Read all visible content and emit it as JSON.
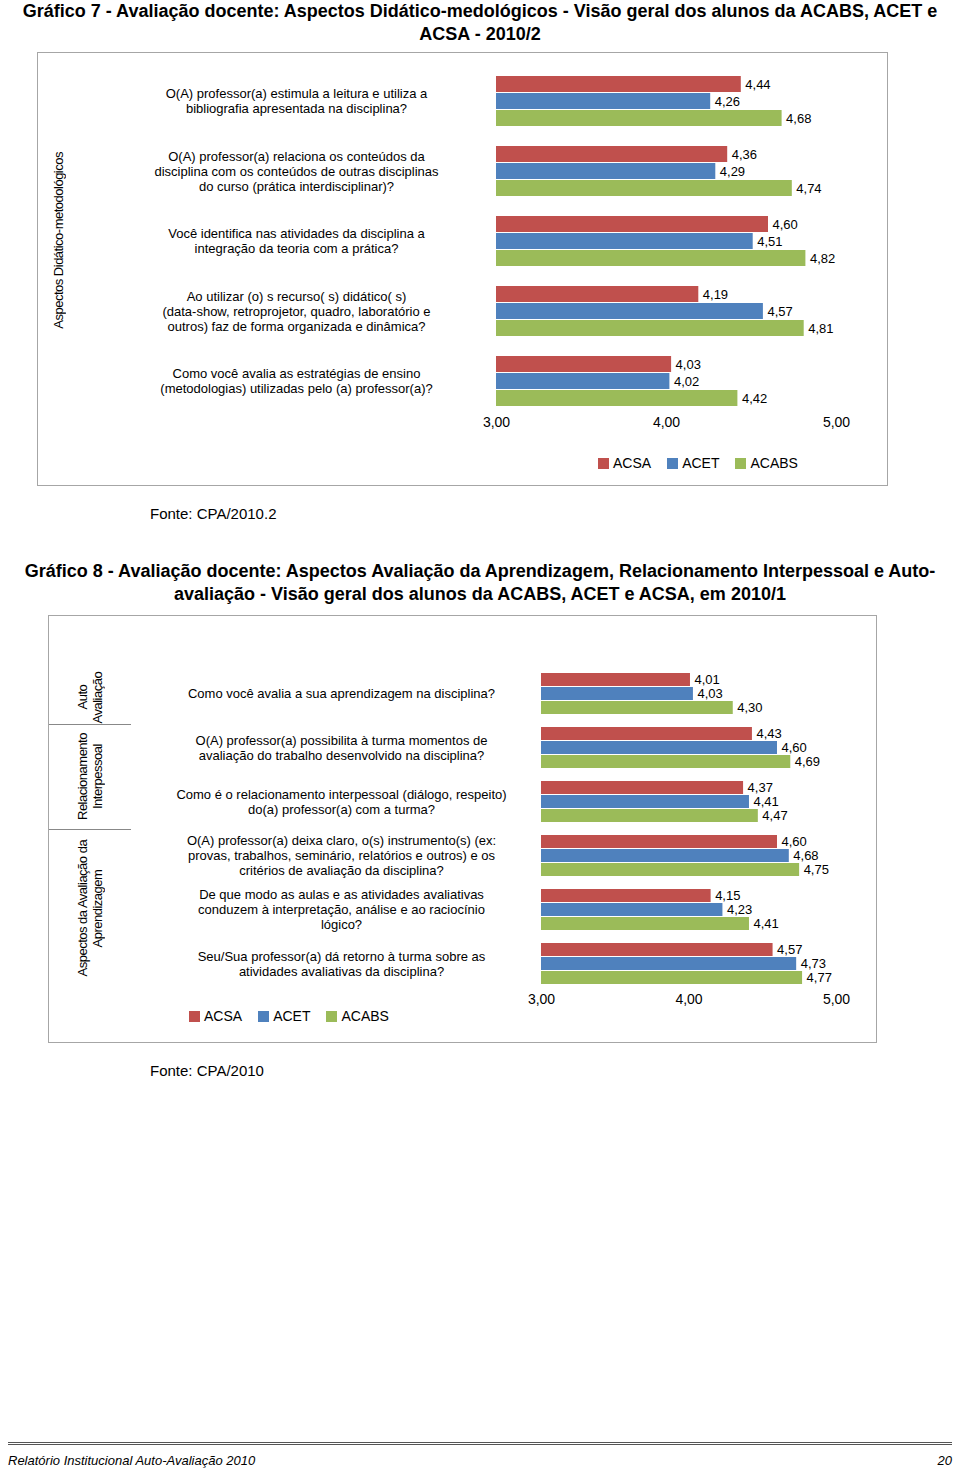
{
  "chart_data": [
    {
      "type": "bar",
      "title": "Gráfico 7 - Avaliação docente: Aspectos Didático-medológicos - Visão geral dos alunos da ACABS, ACET e ACSA - 2010/2",
      "orientation": "horizontal",
      "categories": [
        "O(A) professor(a) estimula a leitura e utiliza a bibliografia apresentada na disciplina?",
        "O(A) professor(a) relaciona os conteúdos da disciplina com os conteúdos de outras disciplinas do curso (prática interdisciplinar)?",
        "Você identifica nas atividades da disciplina a integração da teoria com a prática?",
        "Ao utilizar (o) s recurso( s) didático( s) (data-show, retroprojetor, quadro, laboratório e outros) faz de forma organizada e dinâmica?",
        "Como você avalia as estratégias de ensino (metodologias) utilizadas pelo (a) professor(a)?"
      ],
      "category_groups": [
        "Aspectos Didático-metodológicos",
        "Aspectos Didático-metodológicos",
        "Aspectos Didático-metodológicos",
        "Aspectos Didático-metodológicos",
        "Aspectos Didático-metodológicos"
      ],
      "series": [
        {
          "name": "ACSA",
          "color": "#c0504d",
          "values": [
            4.44,
            4.36,
            4.6,
            4.19,
            4.03
          ],
          "value_labels": [
            "4,44",
            "4,36",
            "4,60",
            "4,19",
            "4,03"
          ]
        },
        {
          "name": "ACET",
          "color": "#4f81bd",
          "values": [
            4.26,
            4.29,
            4.51,
            4.57,
            4.02
          ],
          "value_labels": [
            "4,26",
            "4,29",
            "4,51",
            "4,57",
            "4,02"
          ]
        },
        {
          "name": "ACABS",
          "color": "#9bbb59",
          "values": [
            4.68,
            4.74,
            4.82,
            4.81,
            4.42
          ],
          "value_labels": [
            "4,68",
            "4,74",
            "4,82",
            "4,81",
            "4,42"
          ]
        }
      ],
      "xlim": [
        3,
        5
      ],
      "xticks": [
        {
          "value": 3,
          "label": "3,00"
        },
        {
          "value": 4,
          "label": "4,00"
        },
        {
          "value": 5,
          "label": "5,00"
        }
      ],
      "data_labels": true,
      "grid": false,
      "legend": "bottom",
      "source": "Fonte: CPA/2010.2"
    },
    {
      "type": "bar",
      "title": "Gráfico 8 - Avaliação docente: Aspectos Avaliação da Aprendizagem, Relacionamento Interpessoal e Auto-avaliação - Visão geral dos alunos da ACABS, ACET e ACSA, em 2010/1",
      "orientation": "horizontal",
      "categories": [
        "Como você avalia a sua aprendizagem na disciplina?",
        "O(A) professor(a) possibilita à turma momentos de avaliação do trabalho desenvolvido na disciplina?",
        "Como é o relacionamento interpessoal (diálogo, respeito) do(a) professor(a) com a turma?",
        "O(A) professor(a) deixa claro, o(s) instrumento(s) (ex: provas, trabalhos, seminário, relatórios e outros) e os critérios de avaliação da disciplina?",
        "De que modo as aulas e as atividades avaliativas conduzem à interpretação, análise e ao raciocínio lógico?",
        "Seu/Sua professor(a) dá retorno à turma sobre as atividades avaliativas da disciplina?"
      ],
      "category_groups": [
        "Auto Avaliação",
        "Relacionamento Interpessoal",
        "Relacionamento Interpessoal",
        "Aspectos da Avaliação da Aprendizagem",
        "Aspectos da Avaliação da Aprendizagem",
        "Aspectos da Avaliação da Aprendizagem"
      ],
      "series": [
        {
          "name": "ACSA",
          "color": "#c0504d",
          "values": [
            4.01,
            4.43,
            4.37,
            4.6,
            4.15,
            4.57
          ],
          "value_labels": [
            "4,01",
            "4,43",
            "4,37",
            "4,60",
            "4,15",
            "4,57"
          ]
        },
        {
          "name": "ACET",
          "color": "#4f81bd",
          "values": [
            4.03,
            4.6,
            4.41,
            4.68,
            4.23,
            4.73
          ],
          "value_labels": [
            "4,03",
            "4,60",
            "4,41",
            "4,68",
            "4,23",
            "4,73"
          ]
        },
        {
          "name": "ACABS",
          "color": "#9bbb59",
          "values": [
            4.3,
            4.69,
            4.47,
            4.75,
            4.41,
            4.77
          ],
          "value_labels": [
            "4,30",
            "4,69",
            "4,47",
            "4,75",
            "4,41",
            "4,77"
          ]
        }
      ],
      "xlim": [
        3,
        5
      ],
      "xticks": [
        {
          "value": 3,
          "label": "3,00"
        },
        {
          "value": 4,
          "label": "4,00"
        },
        {
          "value": 5,
          "label": "5,00"
        }
      ],
      "data_labels": true,
      "grid": false,
      "legend": "bottom",
      "source": "Fonte: CPA/2010"
    }
  ],
  "footer": {
    "text": "Relatório Institucional Auto-Avaliação 2010",
    "page": "20"
  }
}
